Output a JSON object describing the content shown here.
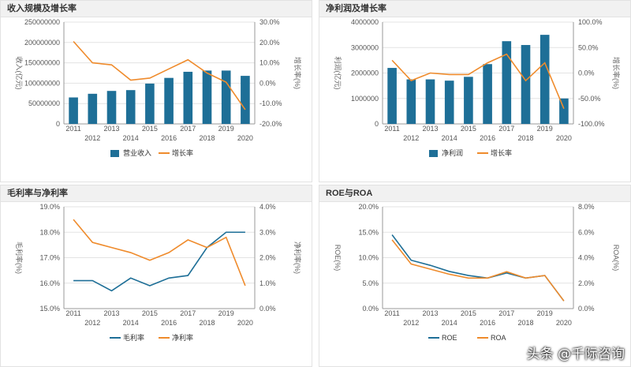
{
  "colors": {
    "bar": "#1e6f97",
    "line_orange": "#ef8b2c",
    "line_teal": "#1e6f97",
    "grid": "#e3e3e3",
    "axis": "#999999"
  },
  "watermark": "头条 @千际咨询",
  "chart_data": [
    {
      "id": "revenue",
      "type": "bar+line",
      "title": "收入规模及增长率",
      "categories": [
        "2011",
        "2012",
        "2013",
        "2014",
        "2015",
        "2016",
        "2017",
        "2018",
        "2019",
        "2020"
      ],
      "bar": {
        "name": "营业收入",
        "values": [
          65000000,
          74000000,
          81000000,
          83000000,
          99000000,
          113000000,
          128000000,
          131000000,
          131000000,
          118000000
        ]
      },
      "line": {
        "name": "增长率",
        "values": [
          20.5,
          10.0,
          9.0,
          1.5,
          2.5,
          7.0,
          11.5,
          5.0,
          0.5,
          -13.0
        ]
      },
      "ylabel_left": "收入(亿元)",
      "ylabel_right": "增长率(%)",
      "yleft": {
        "min": 0,
        "max": 250000000,
        "ticks": [
          "0",
          "50000000",
          "100000000",
          "150000000",
          "200000000",
          "250000000"
        ]
      },
      "yright": {
        "min": -20,
        "max": 30,
        "ticks": [
          "-20.0%",
          "-10.0%",
          "0.0%",
          "10.0%",
          "20.0%",
          "30.0%"
        ]
      }
    },
    {
      "id": "netprofit",
      "type": "bar+line",
      "title": "净利润及增长率",
      "categories": [
        "2011",
        "2012",
        "2013",
        "2014",
        "2015",
        "2016",
        "2017",
        "2018",
        "2019",
        "2020"
      ],
      "bar": {
        "name": "净利润",
        "values": [
          2200000,
          1750000,
          1750000,
          1700000,
          1850000,
          2350000,
          3250000,
          3100000,
          3500000,
          1000000
        ]
      },
      "line": {
        "name": "增长率",
        "values": [
          25,
          -15,
          0,
          -3,
          -3,
          20,
          37,
          -15,
          20,
          -70
        ]
      },
      "ylabel_left": "利润(亿元)",
      "ylabel_right": "增长率(%)",
      "yleft": {
        "min": 0,
        "max": 4000000,
        "ticks": [
          "0",
          "1000000",
          "2000000",
          "3000000",
          "4000000"
        ]
      },
      "yright": {
        "min": -100,
        "max": 100,
        "ticks": [
          "-100.0%",
          "-50.0%",
          "0.0%",
          "50.0%",
          "100.0%"
        ]
      }
    },
    {
      "id": "margins",
      "type": "line",
      "title": "毛利率与净利率",
      "categories": [
        "2011",
        "2012",
        "2013",
        "2014",
        "2015",
        "2016",
        "2017",
        "2018",
        "2019",
        "2020"
      ],
      "series": [
        {
          "name": "毛利率",
          "axis": "left",
          "values": [
            16.1,
            16.1,
            15.7,
            16.2,
            15.9,
            16.2,
            16.3,
            17.4,
            18.0,
            18.0
          ]
        },
        {
          "name": "净利率",
          "axis": "right",
          "values": [
            3.5,
            2.6,
            2.4,
            2.2,
            1.9,
            2.2,
            2.7,
            2.4,
            2.8,
            0.9
          ]
        }
      ],
      "ylabel_left": "毛利率(%)",
      "ylabel_right": "净利率(%)",
      "yleft": {
        "min": 15,
        "max": 19,
        "ticks": [
          "15.0%",
          "16.0%",
          "17.0%",
          "18.0%",
          "19.0%"
        ]
      },
      "yright": {
        "min": 0,
        "max": 4,
        "ticks": [
          "0.0%",
          "1.0%",
          "2.0%",
          "3.0%",
          "4.0%"
        ]
      }
    },
    {
      "id": "roe",
      "type": "line",
      "title": "ROE与ROA",
      "categories": [
        "2011",
        "2012",
        "2013",
        "2014",
        "2015",
        "2016",
        "2017",
        "2018",
        "2019",
        "2020"
      ],
      "series": [
        {
          "name": "ROE",
          "axis": "left",
          "values": [
            14.5,
            9.5,
            8.5,
            7.3,
            6.5,
            6.0,
            7.0,
            6.0,
            6.5,
            1.5
          ]
        },
        {
          "name": "ROA",
          "axis": "right",
          "values": [
            5.4,
            3.5,
            3.1,
            2.7,
            2.4,
            2.4,
            2.9,
            2.4,
            2.6,
            0.6
          ]
        }
      ],
      "ylabel_left": "ROE(%)",
      "ylabel_right": "ROA(%)",
      "yleft": {
        "min": 0,
        "max": 20,
        "ticks": [
          "0.0%",
          "5.0%",
          "10.0%",
          "15.0%",
          "20.0%"
        ]
      },
      "yright": {
        "min": 0,
        "max": 8,
        "ticks": [
          "0.0%",
          "2.0%",
          "4.0%",
          "6.0%",
          "8.0%"
        ]
      }
    }
  ]
}
